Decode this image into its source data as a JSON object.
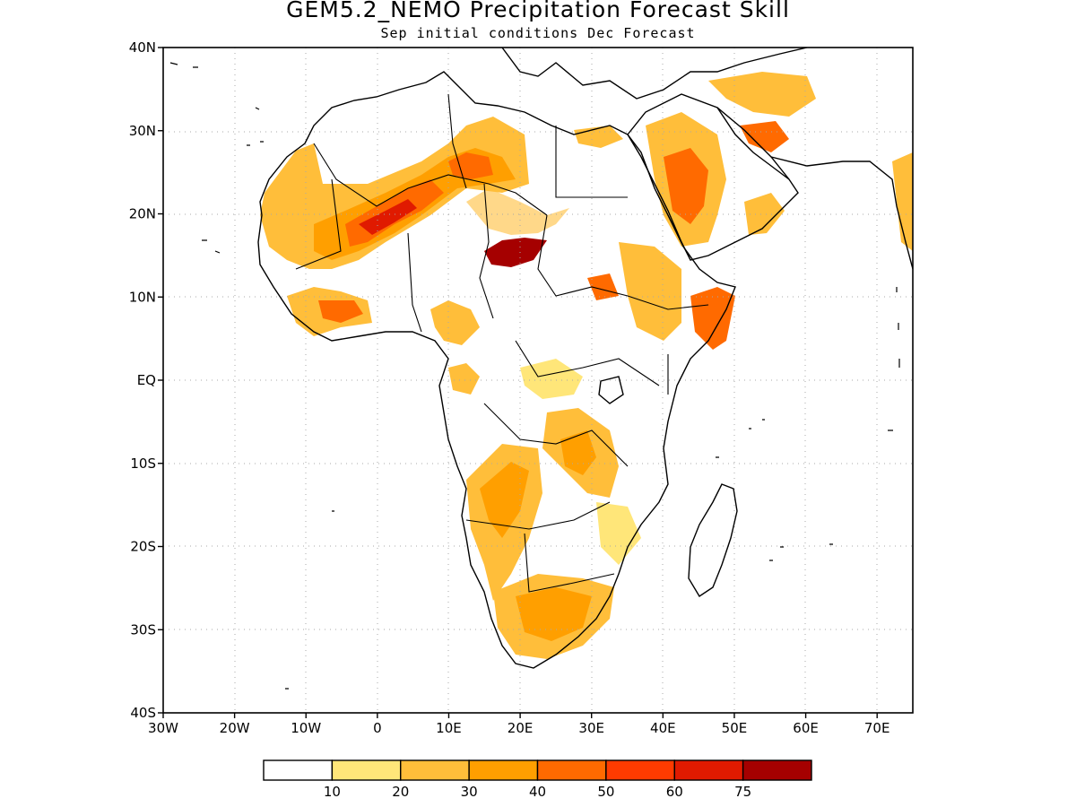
{
  "title": "GEM5.2_NEMO Precipitation Forecast Skill",
  "subtitle": "Sep initial conditions  Dec Forecast",
  "map": {
    "lon_range": [
      -30,
      75
    ],
    "lat_range": [
      -40,
      40
    ],
    "lat_ticks": [
      "40N",
      "30N",
      "20N",
      "10N",
      "EQ",
      "10S",
      "20S",
      "30S",
      "40S"
    ],
    "lon_ticks": [
      "30W",
      "20W",
      "10W",
      "0",
      "10E",
      "20E",
      "30E",
      "40E",
      "50E",
      "60E",
      "70E"
    ],
    "grid": "dotted"
  },
  "legend": {
    "colors": [
      "#ffffff",
      "#ffe679",
      "#ffbe3a",
      "#ff9f00",
      "#ff6a00",
      "#ff3b00",
      "#e01a00",
      "#a50000"
    ],
    "labels": [
      "10",
      "20",
      "30",
      "40",
      "50",
      "60",
      "75"
    ]
  }
}
